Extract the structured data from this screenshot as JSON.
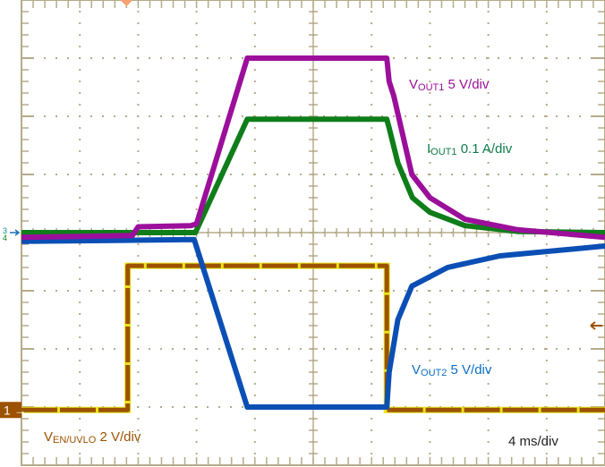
{
  "chart_data": {
    "type": "line",
    "x_unit": "div",
    "y_unit": "div",
    "xlim": [
      0,
      10
    ],
    "ylim": [
      -4,
      4
    ],
    "grid": true,
    "timebase": "4 ms/div",
    "series": [
      {
        "name": "VOUT1",
        "label_main": "V",
        "label_sub": "OUT1",
        "scale": "5 V/div",
        "color": "#9b0f9b",
        "x": [
          0,
          1.9,
          2.0,
          2.9,
          3.0,
          3.87,
          6.26,
          6.3,
          6.38,
          6.69,
          7.0,
          7.6,
          8.5,
          10
        ],
        "y": [
          -0.08,
          -0.05,
          0.1,
          0.12,
          0.15,
          3.0,
          3.0,
          2.6,
          2.35,
          1.0,
          0.6,
          0.23,
          0.05,
          -0.08
        ]
      },
      {
        "name": "IOUT1",
        "label_main": "I",
        "label_sub": "OUT1",
        "scale": "0.1 A/div",
        "color": "#0f7d1a",
        "x": [
          0,
          2.98,
          3.87,
          6.26,
          6.3,
          6.45,
          6.7,
          7.0,
          7.6,
          8.5,
          10
        ],
        "y": [
          0.0,
          0.0,
          1.95,
          1.95,
          1.8,
          1.2,
          0.6,
          0.35,
          0.12,
          0.02,
          0.0
        ]
      },
      {
        "name": "VOUT2",
        "label_main": "V",
        "label_sub": "OUT2",
        "scale": "5 V/div",
        "color": "#0b4fb5",
        "x": [
          0,
          2.96,
          3.87,
          6.26,
          6.3,
          6.45,
          6.69,
          7.3,
          8.2,
          10
        ],
        "y": [
          -0.15,
          -0.12,
          -3.0,
          -3.0,
          -2.4,
          -1.5,
          -0.92,
          -0.6,
          -0.4,
          -0.23
        ]
      },
      {
        "name": "VEN/UVLO",
        "label_main": "V",
        "label_sub": "EN/UVLO",
        "scale": "2 V/div",
        "color": "#9c5200",
        "x": [
          0,
          1.82,
          1.82,
          6.26,
          6.26,
          10
        ],
        "y": [
          -3.05,
          -3.05,
          -0.57,
          -0.57,
          -3.05,
          -3.05
        ]
      }
    ],
    "markers": {
      "ch1": "1",
      "ch3": "3",
      "ch4": "4",
      "trigger_position_div": 1.8,
      "trigger_level_div": -1.6
    },
    "colors": {
      "grid": "#b5ab8a",
      "trigger": "#f7a072",
      "marker_bg": "#9c5200",
      "noise": "#e8e000"
    }
  }
}
